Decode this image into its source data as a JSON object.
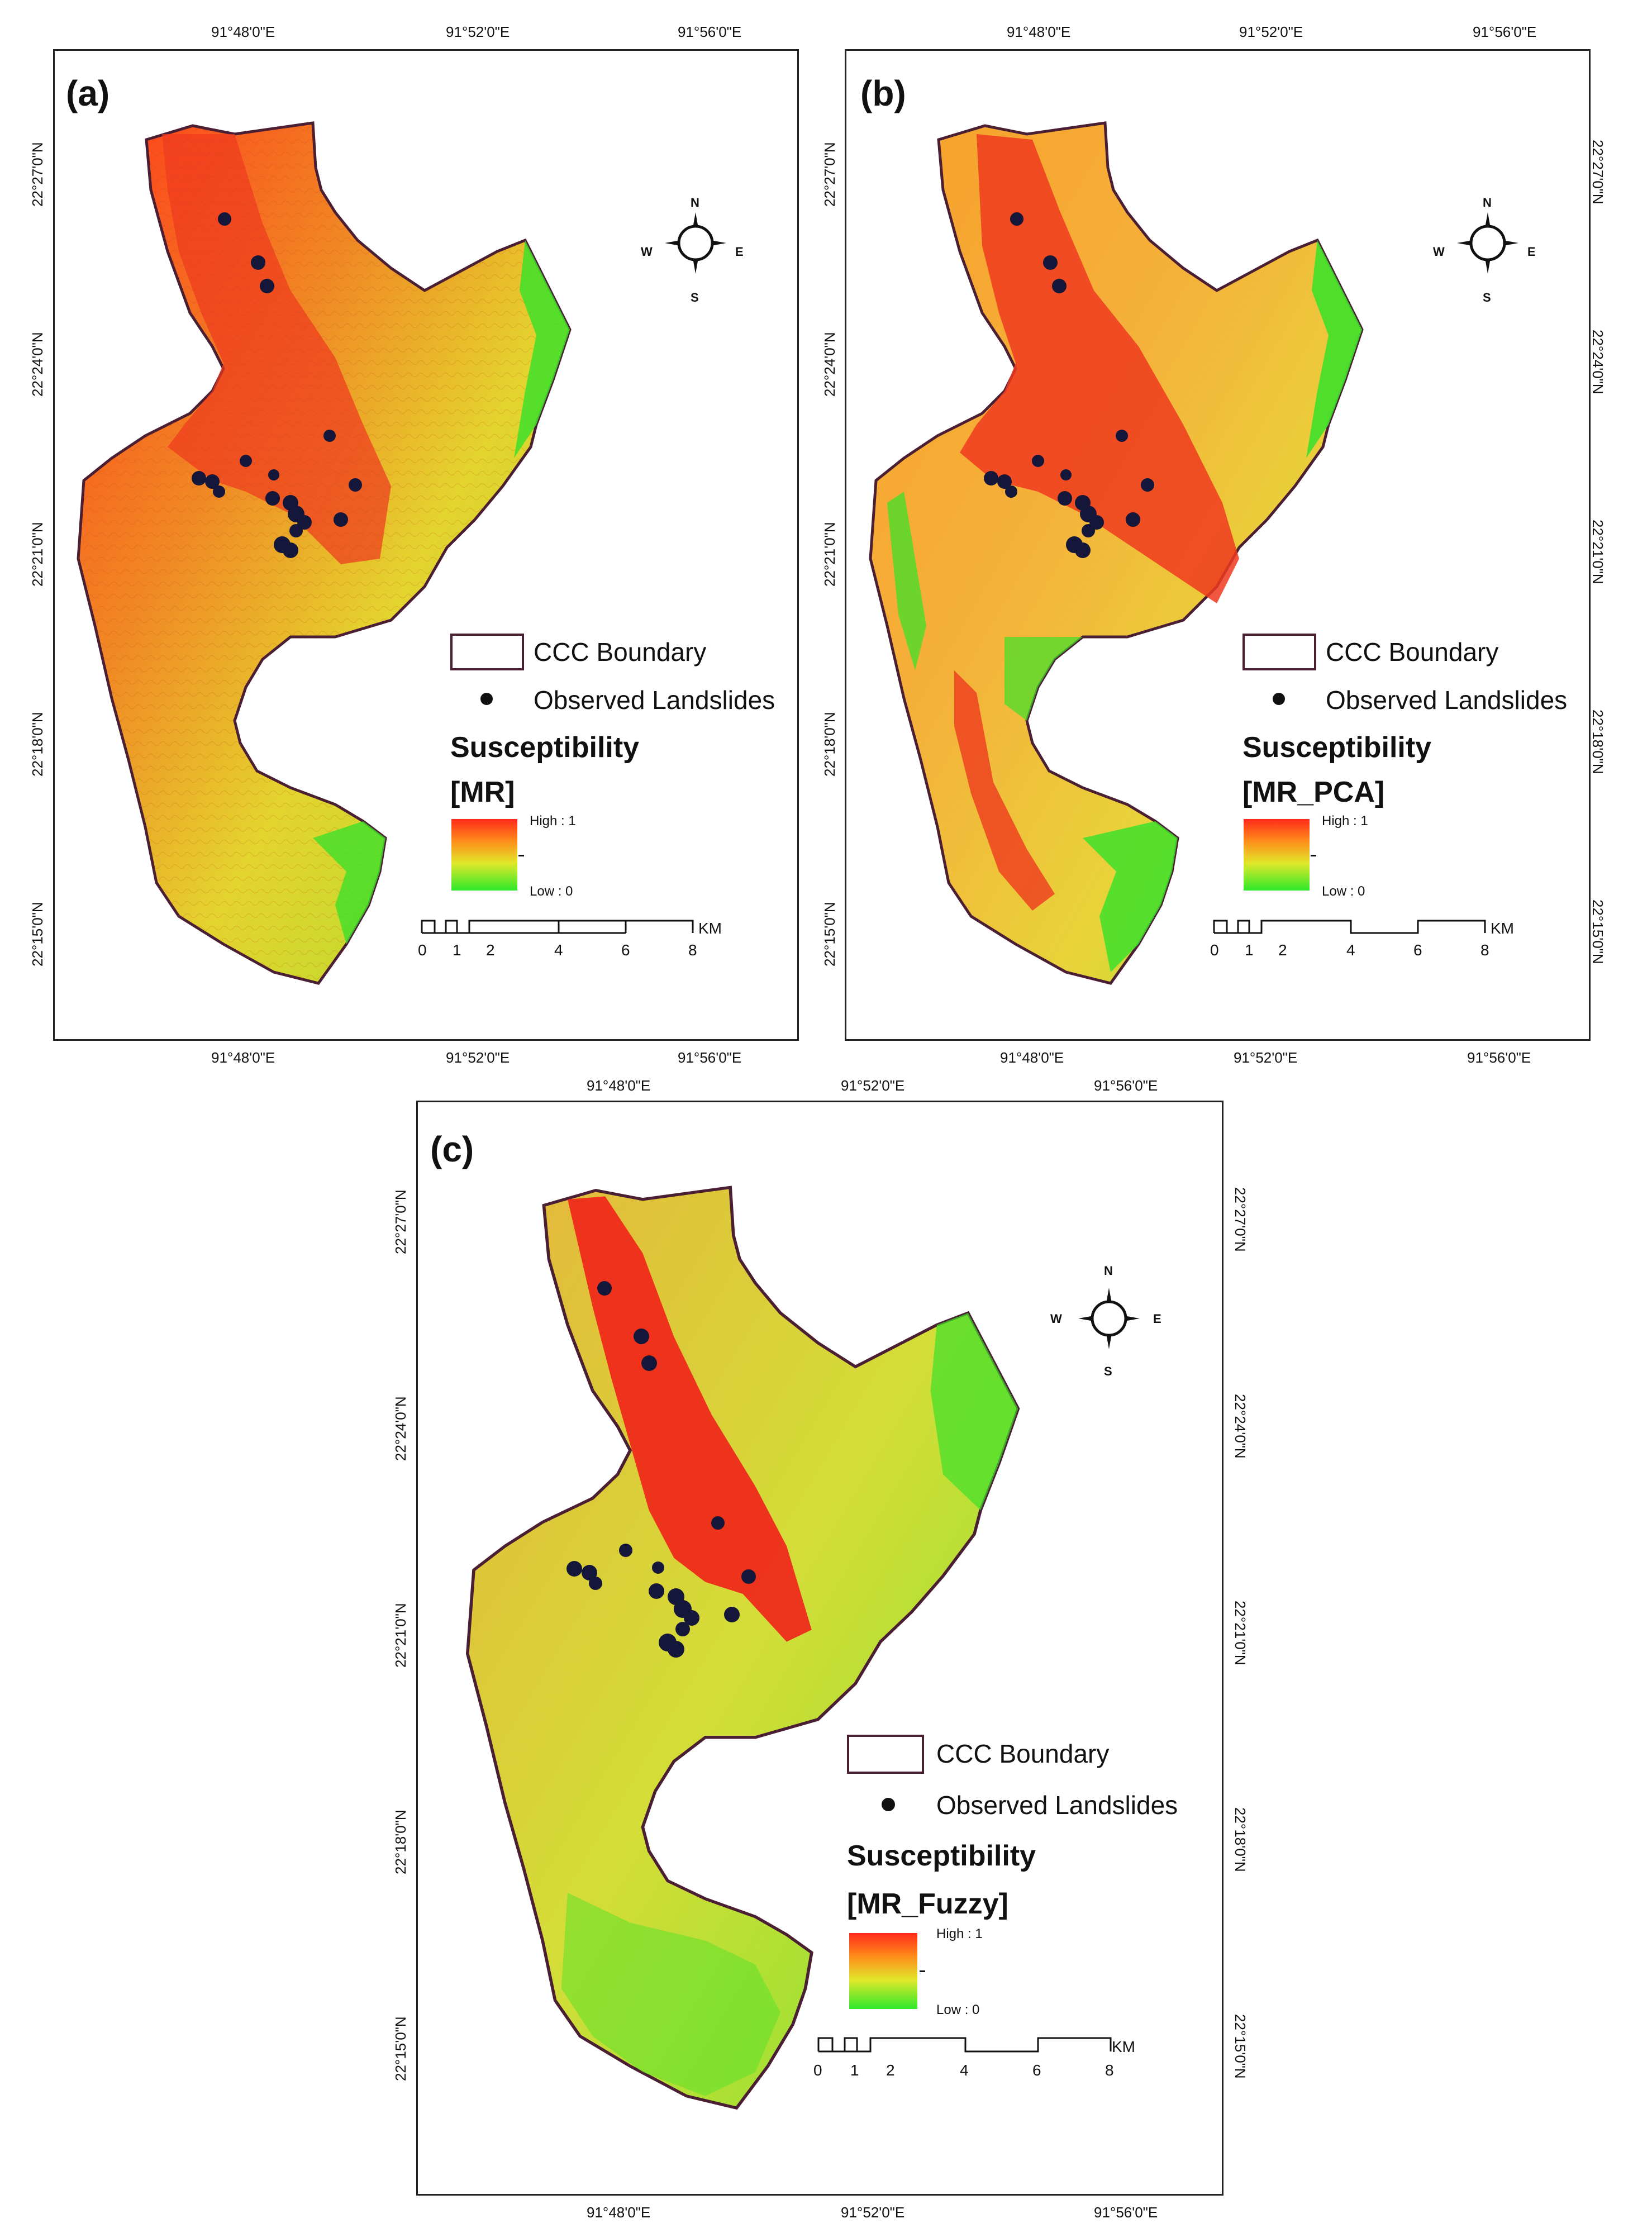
{
  "panels": [
    {
      "label": "(a)",
      "susceptibility_title": "Susceptibility",
      "model": "[MR]",
      "style": "mr"
    },
    {
      "label": "(b)",
      "susceptibility_title": "Susceptibility",
      "model": "[MR_PCA]",
      "style": "pca"
    },
    {
      "label": "(c)",
      "susceptibility_title": "Susceptibility",
      "model": "[MR_Fuzzy]",
      "style": "fuzzy"
    }
  ],
  "legend": {
    "boundary": "CCC Boundary",
    "landslides": "Observed Landslides",
    "high": "High : 1",
    "low": "Low : 0"
  },
  "scale": {
    "unit": "KM",
    "ticks": [
      "0",
      "1",
      "2",
      "4",
      "6",
      "8"
    ]
  },
  "compass": {
    "n": "N",
    "s": "S",
    "e": "E",
    "w": "W"
  },
  "coords": {
    "lon": [
      "91°48'0\"E",
      "91°52'0\"E",
      "91°56'0\"E"
    ],
    "lat": [
      "22°27'0\"N",
      "22°24'0\"N",
      "22°21'0\"N",
      "22°18'0\"N",
      "22°15'0\"N"
    ]
  },
  "colors": {
    "high": "#ff2a1a",
    "mid": "#e0e82a",
    "low": "#2ee82a",
    "boundary": "#4a1f33",
    "landslide": "#14163a"
  }
}
